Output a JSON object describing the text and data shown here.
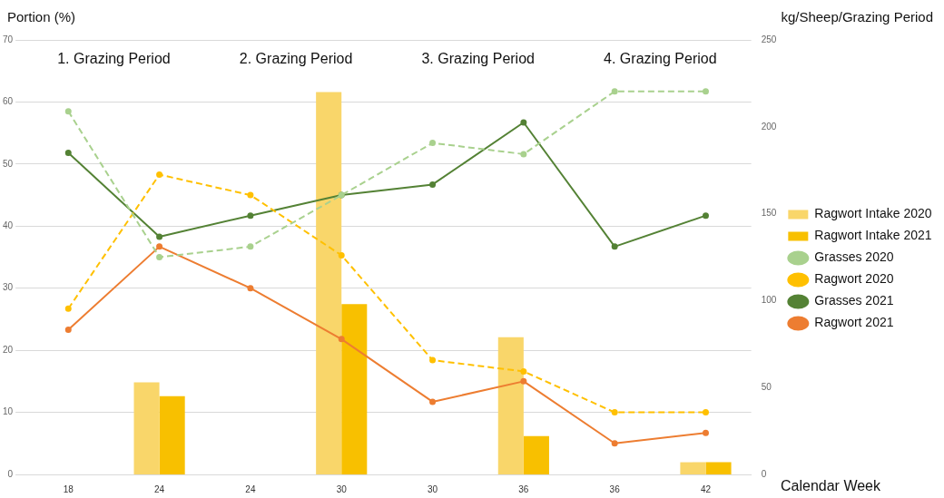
{
  "chart_data": {
    "type": "line",
    "xlabel": "Calendar Week",
    "ylabel": "Portion (%)",
    "y2label": "kg/Sheep/Grazing Period",
    "annotations": [
      "1. Grazing Period",
      "2. Grazing Period",
      "3. Grazing Period",
      "4. Grazing Period"
    ],
    "categories": [
      "18",
      "24",
      "24",
      "30",
      "30",
      "36",
      "36",
      "42"
    ],
    "series": [
      {
        "name": "Ragwort Intake 2020",
        "type": "bar",
        "axis": "y2",
        "color": "#f9d66a",
        "values": [
          null,
          53,
          null,
          220,
          null,
          79,
          null,
          7
        ]
      },
      {
        "name": "Ragwort Intake 2021",
        "type": "bar",
        "axis": "y2",
        "color": "#f8c000",
        "values": [
          null,
          45,
          null,
          98,
          null,
          22,
          null,
          7
        ]
      },
      {
        "name": "Grasses 2020",
        "line_style": "dashed",
        "color": "#a9d18e",
        "values": [
          58.5,
          35,
          36.7,
          45,
          53.4,
          51.6,
          61.7,
          61.7
        ]
      },
      {
        "name": "Ragwort 2020",
        "line_style": "dashed",
        "color": "#ffc000",
        "values": [
          26.7,
          48.3,
          45,
          35.3,
          18.4,
          16.6,
          10,
          10
        ]
      },
      {
        "name": "Grasses 2021",
        "line_style": "solid",
        "color": "#548235",
        "values": [
          51.8,
          38.3,
          41.7,
          45,
          46.7,
          56.7,
          36.7,
          41.7
        ]
      },
      {
        "name": "Ragwort 2021",
        "line_style": "solid",
        "color": "#ed7d31",
        "values": [
          23.3,
          36.7,
          30,
          21.8,
          11.7,
          15,
          5,
          6.7
        ]
      }
    ],
    "ylim": [
      0,
      70
    ],
    "yticks": [
      0,
      10,
      20,
      30,
      40,
      50,
      60,
      70
    ],
    "y2lim": [
      0,
      250
    ],
    "y2ticks": [
      0,
      50,
      100,
      150,
      200,
      250
    ],
    "grid": "y",
    "legend": "right",
    "marker": "circle"
  }
}
